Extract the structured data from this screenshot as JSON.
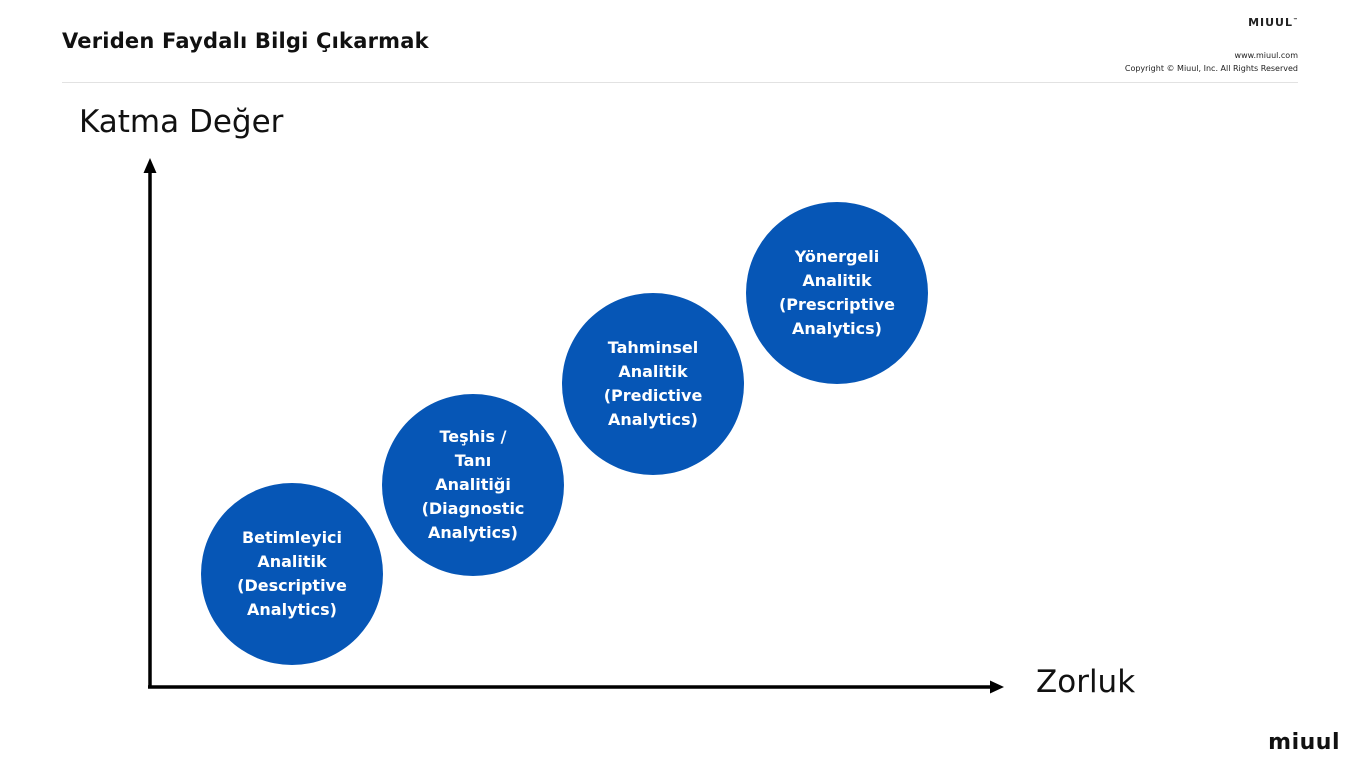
{
  "header": {
    "title": "Veriden Faydalı Bilgi Çıkarmak",
    "brand": "MIUUL",
    "brand_mark": "™",
    "website": "www.miuul.com",
    "copyright": "Copyright © Miuul, Inc. All Rights Reserved"
  },
  "diagram": {
    "y_axis_label": "Katma Değer",
    "x_axis_label": "Zorluk",
    "stages": [
      {
        "label": "Betimleyici\nAnalitik\n(Descriptive\nAnalytics)"
      },
      {
        "label": "Teşhis /\nTanı\nAnalitiği\n(Diagnostic\nAnalytics)"
      },
      {
        "label": "Tahminsel\nAnalitik\n(Predictive\nAnalytics)"
      },
      {
        "label": "Yönergeli\nAnalitik\n(Prescriptive\nAnalytics)"
      }
    ],
    "stage_color": "#0656b6",
    "axis_color": "#000000"
  },
  "footer": {
    "logo": "miuul"
  }
}
